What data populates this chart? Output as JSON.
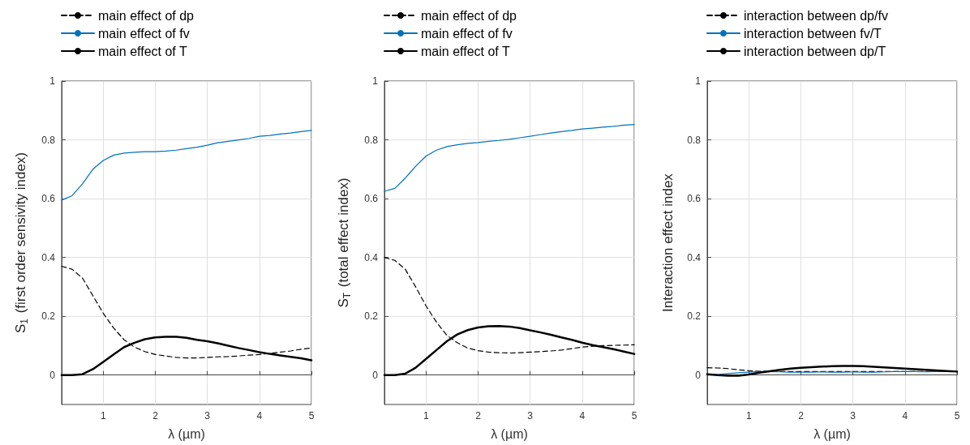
{
  "chart_data": [
    {
      "type": "line",
      "xlabel": "λ (µm)",
      "ylabel": "S$_{1}$ (first order sensivity index)",
      "xlim": [
        0.2,
        5
      ],
      "xticks": [
        1,
        2,
        3,
        4,
        5
      ],
      "ylim": [
        -0.1,
        1
      ],
      "yticks": [
        0,
        0.2,
        0.4,
        0.6,
        0.8,
        1
      ],
      "grid": true,
      "legend": "top",
      "x": [
        0.2,
        0.4,
        0.6,
        0.8,
        1.0,
        1.2,
        1.4,
        1.6,
        1.8,
        2.0,
        2.2,
        2.4,
        2.6,
        2.8,
        3.0,
        3.2,
        3.4,
        3.6,
        3.8,
        4.0,
        4.2,
        4.4,
        4.6,
        4.8,
        5.0
      ],
      "series": [
        {
          "name": "main effect of dp",
          "color": "#000000",
          "line_style": "dashed",
          "values": [
            0.37,
            0.36,
            0.33,
            0.27,
            0.21,
            0.16,
            0.12,
            0.095,
            0.08,
            0.07,
            0.065,
            0.06,
            0.058,
            0.058,
            0.06,
            0.062,
            0.063,
            0.065,
            0.068,
            0.07,
            0.074,
            0.078,
            0.082,
            0.088,
            0.092
          ]
        },
        {
          "name": "main effect of fv",
          "color": "#0072bd",
          "line_style": "solid",
          "values": [
            0.595,
            0.61,
            0.65,
            0.7,
            0.73,
            0.748,
            0.755,
            0.758,
            0.76,
            0.76,
            0.762,
            0.765,
            0.77,
            0.775,
            0.782,
            0.79,
            0.795,
            0.8,
            0.805,
            0.812,
            0.815,
            0.82,
            0.823,
            0.828,
            0.832
          ]
        },
        {
          "name": "main effect of T",
          "color": "#000000",
          "line_style": "solid",
          "values": [
            0,
            0,
            0.003,
            0.02,
            0.045,
            0.07,
            0.095,
            0.11,
            0.122,
            0.128,
            0.13,
            0.13,
            0.127,
            0.12,
            0.115,
            0.108,
            0.1,
            0.092,
            0.085,
            0.078,
            0.072,
            0.067,
            0.062,
            0.057,
            0.05
          ]
        }
      ]
    },
    {
      "type": "line",
      "xlabel": "λ (µm)",
      "ylabel": "S$_{T}$ (total effect index)",
      "xlim": [
        0.2,
        5
      ],
      "xticks": [
        1,
        2,
        3,
        4,
        5
      ],
      "ylim": [
        -0.1,
        1
      ],
      "yticks": [
        0,
        0.2,
        0.4,
        0.6,
        0.8,
        1
      ],
      "grid": true,
      "legend": "top",
      "x": [
        0.2,
        0.4,
        0.6,
        0.8,
        1.0,
        1.2,
        1.4,
        1.6,
        1.8,
        2.0,
        2.2,
        2.4,
        2.6,
        2.8,
        3.0,
        3.2,
        3.4,
        3.6,
        3.8,
        4.0,
        4.2,
        4.4,
        4.6,
        4.8,
        5.0
      ],
      "series": [
        {
          "name": "main effect of dp",
          "color": "#000000",
          "line_style": "dashed",
          "values": [
            0.4,
            0.39,
            0.36,
            0.3,
            0.235,
            0.18,
            0.135,
            0.11,
            0.092,
            0.083,
            0.078,
            0.076,
            0.075,
            0.076,
            0.078,
            0.08,
            0.082,
            0.085,
            0.09,
            0.095,
            0.098,
            0.1,
            0.101,
            0.102,
            0.103
          ]
        },
        {
          "name": "main effect of fv",
          "color": "#0072bd",
          "line_style": "solid",
          "values": [
            0.625,
            0.635,
            0.67,
            0.71,
            0.745,
            0.765,
            0.777,
            0.783,
            0.788,
            0.791,
            0.795,
            0.798,
            0.802,
            0.807,
            0.812,
            0.818,
            0.823,
            0.828,
            0.832,
            0.837,
            0.84,
            0.843,
            0.846,
            0.85,
            0.852
          ]
        },
        {
          "name": "main effect of T",
          "color": "#000000",
          "line_style": "solid",
          "values": [
            0,
            0,
            0.005,
            0.025,
            0.055,
            0.085,
            0.115,
            0.138,
            0.153,
            0.162,
            0.166,
            0.167,
            0.165,
            0.16,
            0.152,
            0.145,
            0.137,
            0.128,
            0.12,
            0.11,
            0.102,
            0.095,
            0.088,
            0.08,
            0.072
          ]
        }
      ]
    },
    {
      "type": "line",
      "xlabel": "λ (µm)",
      "ylabel": "Interaction effect index",
      "xlim": [
        0.2,
        5
      ],
      "xticks": [
        1,
        2,
        3,
        4,
        5
      ],
      "ylim": [
        -0.1,
        1
      ],
      "yticks": [
        0,
        0.2,
        0.4,
        0.6,
        0.8,
        1
      ],
      "grid": true,
      "legend": "top",
      "x": [
        0.2,
        0.4,
        0.6,
        0.8,
        1.0,
        1.2,
        1.4,
        1.6,
        1.8,
        2.0,
        2.2,
        2.4,
        2.6,
        2.8,
        3.0,
        3.2,
        3.4,
        3.6,
        3.8,
        4.0,
        4.2,
        4.4,
        4.6,
        4.8,
        5.0
      ],
      "series": [
        {
          "name": "interaction between dp/fv",
          "color": "#000000",
          "line_style": "dashed",
          "values": [
            0.025,
            0.024,
            0.022,
            0.018,
            0.015,
            0.013,
            0.012,
            0.012,
            0.012,
            0.012,
            0.012,
            0.012,
            0.012,
            0.012,
            0.012,
            0.012,
            0.012,
            0.012,
            0.012,
            0.012,
            0.012,
            0.012,
            0.012,
            0.012,
            0.012
          ]
        },
        {
          "name": "interaction between fv/T",
          "color": "#0072bd",
          "line_style": "solid",
          "values": [
            0.0,
            0.002,
            0.005,
            0.008,
            0.01,
            0.012,
            0.012,
            0.011,
            0.01,
            0.01,
            0.01,
            0.011,
            0.01,
            0.01,
            0.011,
            0.01,
            0.01,
            0.011,
            0.012,
            0.012,
            0.012,
            0.011,
            0.012,
            0.012,
            0.012
          ]
        },
        {
          "name": "interaction between dp/T",
          "color": "#000000",
          "line_style": "solid",
          "values": [
            0.003,
            0.0,
            -0.002,
            -0.002,
            0.002,
            0.008,
            0.013,
            0.018,
            0.022,
            0.025,
            0.027,
            0.029,
            0.03,
            0.031,
            0.031,
            0.03,
            0.028,
            0.026,
            0.024,
            0.022,
            0.02,
            0.018,
            0.016,
            0.014,
            0.012
          ]
        }
      ]
    }
  ]
}
